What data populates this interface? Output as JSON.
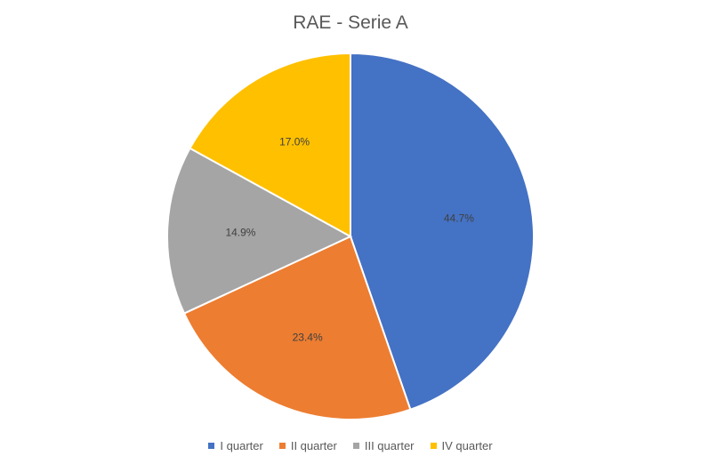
{
  "chart_data": {
    "type": "pie",
    "title": "RAE - Serie A",
    "categories": [
      "I quarter",
      "II quarter",
      "III quarter",
      "IV quarter"
    ],
    "values": [
      44.7,
      23.4,
      14.9,
      17.0
    ],
    "labels": [
      "44.7%",
      "23.4%",
      "14.9%",
      "17.0%"
    ],
    "colors": [
      "#4472C4",
      "#ED7D31",
      "#A5A5A5",
      "#FFC000"
    ],
    "legend_position": "bottom"
  }
}
